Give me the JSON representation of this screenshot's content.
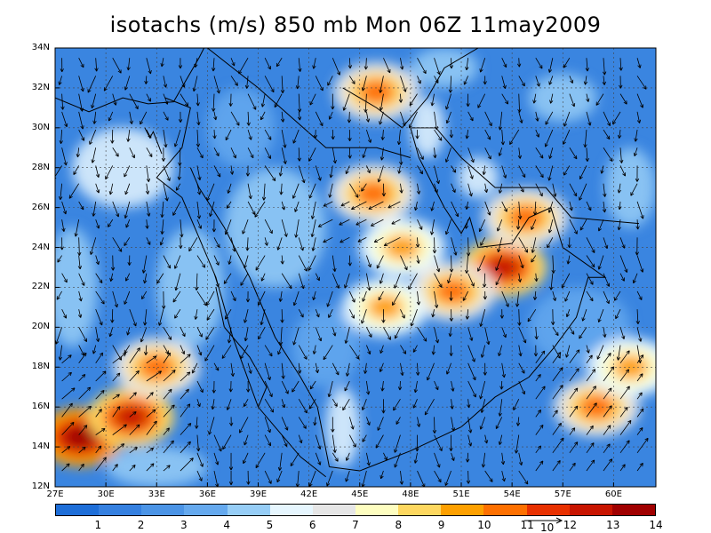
{
  "title": "isotachs (m/s) 850 mb Mon 06Z 11may2009",
  "x_ticks": [
    "27E",
    "30E",
    "33E",
    "36E",
    "39E",
    "42E",
    "45E",
    "48E",
    "51E",
    "54E",
    "57E",
    "60E"
  ],
  "y_ticks": [
    "34N",
    "32N",
    "30N",
    "28N",
    "26N",
    "24N",
    "22N",
    "20N",
    "18N",
    "16N",
    "14N",
    "12N"
  ],
  "colorbar": {
    "colors": [
      "#1e6ed8",
      "#3580e0",
      "#4b94e6",
      "#65a9ee",
      "#96cdf6",
      "#e6f6fe",
      "#e6e6e6",
      "#fefec0",
      "#fed860",
      "#fea000",
      "#fe7000",
      "#e83000",
      "#c81400",
      "#a00000"
    ],
    "labels": [
      "1",
      "2",
      "3",
      "4",
      "5",
      "6",
      "7",
      "8",
      "9",
      "10",
      "11",
      "12",
      "13",
      "14"
    ]
  },
  "vector_scale_label": "10",
  "chart_data": {
    "type": "heatmap",
    "title": "isotachs (m/s) 850 mb Mon 06Z 11may2009",
    "lon_range": [
      27,
      62.5
    ],
    "lat_range": [
      12,
      34
    ],
    "levels": [
      1,
      2,
      3,
      4,
      5,
      6,
      7,
      8,
      9,
      10,
      11,
      12,
      13,
      14
    ],
    "grid": true,
    "wind_max_regions": [
      {
        "lon": 28.5,
        "lat": 14.5,
        "speed": 14
      },
      {
        "lon": 31.5,
        "lat": 15.5,
        "speed": 13
      },
      {
        "lon": 33,
        "lat": 18,
        "speed": 11
      },
      {
        "lon": 46,
        "lat": 31.8,
        "speed": 11
      },
      {
        "lon": 45.8,
        "lat": 26.7,
        "speed": 11
      },
      {
        "lon": 53.5,
        "lat": 23,
        "speed": 13
      },
      {
        "lon": 54.8,
        "lat": 25.5,
        "speed": 11
      },
      {
        "lon": 47.5,
        "lat": 24,
        "speed": 10
      },
      {
        "lon": 50.5,
        "lat": 21.8,
        "speed": 11
      },
      {
        "lon": 46.5,
        "lat": 21,
        "speed": 10
      },
      {
        "lon": 59,
        "lat": 16,
        "speed": 11
      },
      {
        "lon": 61,
        "lat": 18,
        "speed": 10
      }
    ]
  }
}
